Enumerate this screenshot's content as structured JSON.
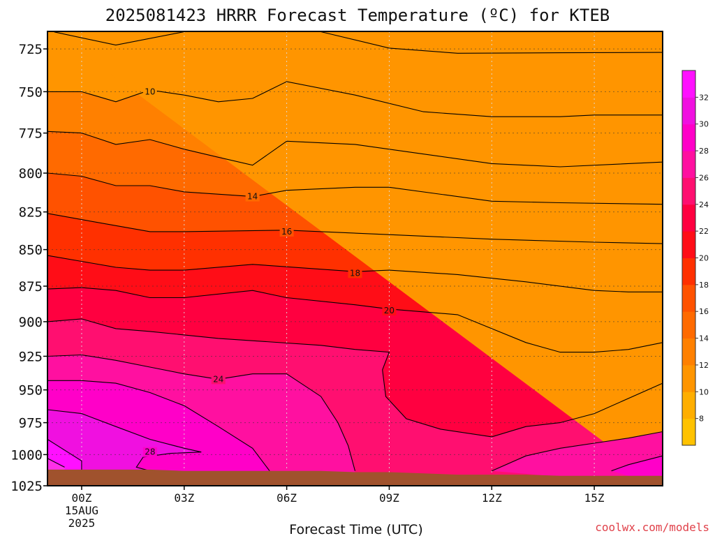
{
  "title": "2025081423 HRRR Forecast Temperature (ºC) for KTEB",
  "credit": "coolwx.com/models",
  "chart_data": {
    "type": "contour-filled",
    "title": "2025081423 HRRR Forecast Temperature (ºC) for KTEB",
    "xlabel": "Forecast Time (UTC)",
    "ylabel": "",
    "x_ticks": [
      {
        "hour": 0,
        "lines": [
          "00Z",
          "15AUG",
          "2025"
        ]
      },
      {
        "hour": 3,
        "lines": [
          "03Z"
        ]
      },
      {
        "hour": 6,
        "lines": [
          "06Z"
        ]
      },
      {
        "hour": 9,
        "lines": [
          "09Z"
        ]
      },
      {
        "hour": 12,
        "lines": [
          "12Z"
        ]
      },
      {
        "hour": 15,
        "lines": [
          "15Z"
        ]
      }
    ],
    "xlim": [
      -1,
      17
    ],
    "y_ticks": [
      725,
      750,
      775,
      800,
      825,
      850,
      875,
      900,
      925,
      950,
      975,
      1000,
      1025
    ],
    "ylim": [
      1025,
      715
    ],
    "y_scale": "log-pressure",
    "colorbar": {
      "levels": [
        6,
        8,
        10,
        12,
        14,
        16,
        18,
        20,
        22,
        24,
        26,
        28,
        30,
        32,
        34
      ],
      "labels": [
        8,
        10,
        12,
        14,
        16,
        18,
        20,
        22,
        24,
        26,
        28,
        30,
        32
      ],
      "colors": [
        "#ffc200",
        "#ffae00",
        "#ff9500",
        "#ff8000",
        "#ff6a00",
        "#ff5200",
        "#ff3000",
        "#ff0d17",
        "#ff0040",
        "#ff0f70",
        "#ff10a0",
        "#ff00c8",
        "#f010e0",
        "#ff10ff"
      ]
    },
    "contours": [
      {
        "level": 8,
        "label": "",
        "points": [
          [
            -0.8,
            715.3
          ],
          [
            1,
            722.8
          ],
          [
            3,
            715.2
          ],
          [
            7,
            715.2
          ],
          [
            9,
            724.5
          ],
          [
            11,
            727.5
          ],
          [
            14,
            727.2
          ],
          [
            17,
            727
          ]
        ]
      },
      {
        "level": 10,
        "label": "10",
        "label_at": [
          2,
          750
        ],
        "points": [
          [
            -1,
            750
          ],
          [
            0,
            750
          ],
          [
            1,
            756
          ],
          [
            2,
            749
          ],
          [
            3,
            752
          ],
          [
            4,
            756
          ],
          [
            5,
            754
          ],
          [
            6,
            744
          ],
          [
            8,
            752
          ],
          [
            10,
            762
          ],
          [
            12,
            765
          ],
          [
            14,
            765
          ],
          [
            15,
            764
          ],
          [
            17,
            764
          ]
        ]
      },
      {
        "level": 12,
        "label": "",
        "points": [
          [
            -1,
            774
          ],
          [
            0,
            775
          ],
          [
            1,
            782
          ],
          [
            2,
            779
          ],
          [
            3,
            785
          ],
          [
            4,
            790
          ],
          [
            5,
            795
          ],
          [
            6,
            780
          ],
          [
            8,
            782
          ],
          [
            10,
            788
          ],
          [
            12,
            794
          ],
          [
            14,
            796
          ],
          [
            17,
            793
          ]
        ]
      },
      {
        "level": 14,
        "label": "14",
        "label_at": [
          5,
          815
        ],
        "points": [
          [
            -1,
            800
          ],
          [
            0,
            802
          ],
          [
            1,
            808
          ],
          [
            2,
            808
          ],
          [
            3,
            812
          ],
          [
            5,
            815
          ],
          [
            6,
            811
          ],
          [
            8,
            809
          ],
          [
            9,
            809
          ],
          [
            12,
            818
          ],
          [
            14,
            819
          ],
          [
            17,
            820
          ]
        ]
      },
      {
        "level": 16,
        "label": "16",
        "label_at": [
          6,
          838
        ],
        "points": [
          [
            -1,
            826
          ],
          [
            0,
            830
          ],
          [
            1,
            834
          ],
          [
            2,
            838
          ],
          [
            3,
            838
          ],
          [
            6,
            837
          ],
          [
            9,
            840
          ],
          [
            12,
            843
          ],
          [
            15,
            845
          ],
          [
            17,
            846
          ]
        ]
      },
      {
        "level": 18,
        "label": "18",
        "label_at": [
          8,
          866
        ],
        "points": [
          [
            -1,
            854
          ],
          [
            0,
            858
          ],
          [
            1,
            862
          ],
          [
            2,
            864
          ],
          [
            3,
            864
          ],
          [
            5,
            860
          ],
          [
            8,
            865
          ],
          [
            9,
            864
          ],
          [
            11,
            867
          ],
          [
            13,
            872
          ],
          [
            15,
            878
          ],
          [
            16,
            879
          ],
          [
            17,
            879
          ]
        ]
      },
      {
        "level": 20,
        "label": "20",
        "label_at": [
          9,
          892
        ],
        "points": [
          [
            -1,
            877
          ],
          [
            0,
            876
          ],
          [
            1,
            878
          ],
          [
            2,
            883
          ],
          [
            3,
            883
          ],
          [
            5,
            878
          ],
          [
            6,
            883
          ],
          [
            8,
            888
          ],
          [
            9,
            891
          ],
          [
            11,
            895
          ],
          [
            12,
            905
          ],
          [
            13,
            915
          ],
          [
            14,
            922
          ],
          [
            15,
            922
          ],
          [
            16,
            920
          ],
          [
            17,
            915
          ]
        ]
      },
      {
        "level": 22,
        "label": "",
        "points": [
          [
            -1,
            900
          ],
          [
            0,
            898
          ],
          [
            1,
            905
          ],
          [
            2,
            907
          ],
          [
            4,
            912
          ],
          [
            7,
            917
          ],
          [
            8,
            920
          ],
          [
            9,
            922
          ],
          [
            8.8,
            935
          ],
          [
            8.9,
            955
          ],
          [
            9.5,
            972
          ],
          [
            10.5,
            980
          ],
          [
            12,
            986
          ],
          [
            13,
            978
          ],
          [
            14,
            975
          ],
          [
            15,
            968
          ],
          [
            17,
            945
          ]
        ]
      },
      {
        "level": 24,
        "label": "24",
        "label_at": [
          4,
          942
        ],
        "points": [
          [
            -1,
            925
          ],
          [
            0,
            924
          ],
          [
            1,
            928
          ],
          [
            2,
            933
          ],
          [
            3,
            938
          ],
          [
            4,
            942
          ],
          [
            5,
            938
          ],
          [
            6,
            938
          ],
          [
            7,
            955
          ],
          [
            7.5,
            975
          ],
          [
            7.8,
            993
          ],
          [
            8,
            1013
          ]
        ]
      },
      {
        "level": 26,
        "label": "",
        "points": [
          [
            -1,
            943
          ],
          [
            0,
            943
          ],
          [
            1,
            945
          ],
          [
            2,
            952
          ],
          [
            3,
            962
          ],
          [
            4,
            978
          ],
          [
            5,
            995
          ],
          [
            5.5,
            1013
          ]
        ]
      },
      {
        "level": 28,
        "label": "28",
        "label_at": [
          2,
          998
        ],
        "points": [
          [
            -1,
            965
          ],
          [
            0,
            968
          ],
          [
            1,
            978
          ],
          [
            2,
            988
          ],
          [
            3,
            995
          ],
          [
            3.5,
            998
          ],
          [
            2.6,
            999
          ],
          [
            1.8,
            1002
          ],
          [
            1.6,
            1010
          ],
          [
            2,
            1013
          ]
        ]
      },
      {
        "level": 30,
        "label": "",
        "points": [
          [
            -1,
            988
          ],
          [
            0,
            1005
          ],
          [
            0,
            1013
          ]
        ]
      },
      {
        "level": 32,
        "label": "",
        "points": [
          [
            -1,
            1003
          ],
          [
            -0.5,
            1010
          ]
        ]
      },
      {
        "level": 24,
        "label": "",
        "points": [
          [
            12,
            1013
          ],
          [
            13,
            1001
          ],
          [
            14,
            995
          ],
          [
            15,
            991
          ],
          [
            16,
            987
          ],
          [
            17,
            982
          ]
        ]
      },
      {
        "level": 26,
        "label": "",
        "points": [
          [
            15.5,
            1013
          ],
          [
            16,
            1008
          ],
          [
            17,
            1001
          ]
        ]
      }
    ],
    "surface_pressure": [
      [
        -1,
        1012
      ],
      [
        0,
        1012
      ],
      [
        1,
        1012
      ],
      [
        2,
        1012
      ],
      [
        3,
        1013
      ],
      [
        4,
        1013
      ],
      [
        5,
        1013
      ],
      [
        6,
        1013
      ],
      [
        7,
        1013
      ],
      [
        8,
        1014
      ],
      [
        9,
        1014
      ],
      [
        10,
        1015
      ],
      [
        11,
        1016
      ],
      [
        12,
        1016
      ],
      [
        13,
        1016
      ],
      [
        14,
        1017
      ],
      [
        15,
        1017
      ],
      [
        16,
        1017
      ],
      [
        17,
        1017
      ]
    ],
    "grid": true
  }
}
